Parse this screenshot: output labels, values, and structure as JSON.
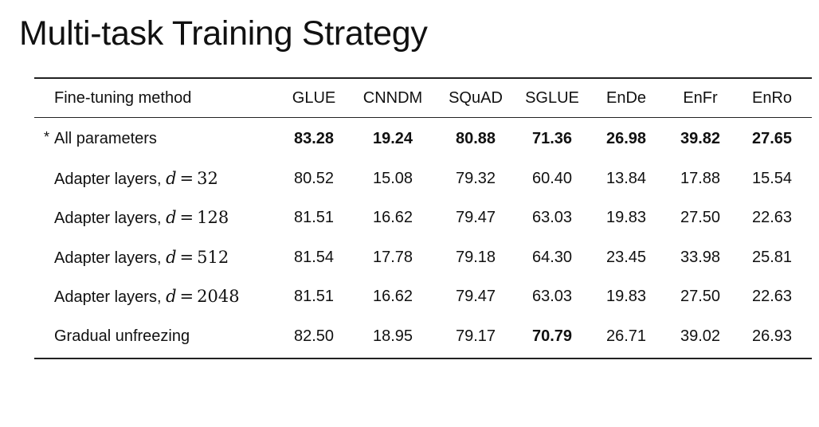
{
  "slide": {
    "title": "Multi-task Training Strategy"
  },
  "table": {
    "headers": [
      "Fine-tuning method",
      "GLUE",
      "CNNDM",
      "SQuAD",
      "SGLUE",
      "EnDe",
      "EnFr",
      "EnRo"
    ],
    "rows": [
      {
        "marker": "*",
        "label": "All parameters",
        "values": [
          "83.28",
          "19.24",
          "80.88",
          "71.36",
          "26.98",
          "39.82",
          "27.65"
        ],
        "bold": [
          true,
          true,
          true,
          true,
          true,
          true,
          true
        ]
      },
      {
        "label": "Adapter layers,",
        "math_var": "d",
        "math_op": "=",
        "math_val": "32",
        "values": [
          "80.52",
          "15.08",
          "79.32",
          "60.40",
          "13.84",
          "17.88",
          "15.54"
        ],
        "bold": [
          false,
          false,
          false,
          false,
          false,
          false,
          false
        ]
      },
      {
        "label": "Adapter layers,",
        "math_var": "d",
        "math_op": "=",
        "math_val": "128",
        "values": [
          "81.51",
          "16.62",
          "79.47",
          "63.03",
          "19.83",
          "27.50",
          "22.63"
        ],
        "bold": [
          false,
          false,
          false,
          false,
          false,
          false,
          false
        ]
      },
      {
        "label": "Adapter layers,",
        "math_var": "d",
        "math_op": "=",
        "math_val": "512",
        "values": [
          "81.54",
          "17.78",
          "79.18",
          "64.30",
          "23.45",
          "33.98",
          "25.81"
        ],
        "bold": [
          false,
          false,
          false,
          false,
          false,
          false,
          false
        ]
      },
      {
        "label": "Adapter layers,",
        "math_var": "d",
        "math_op": "=",
        "math_val": "2048",
        "values": [
          "81.51",
          "16.62",
          "79.47",
          "63.03",
          "19.83",
          "27.50",
          "22.63"
        ],
        "bold": [
          false,
          false,
          false,
          false,
          false,
          false,
          false
        ]
      },
      {
        "label": "Gradual unfreezing",
        "values": [
          "82.50",
          "18.95",
          "79.17",
          "70.79",
          "26.71",
          "39.02",
          "26.93"
        ],
        "bold": [
          false,
          false,
          false,
          true,
          false,
          false,
          false
        ]
      }
    ]
  },
  "colors": {
    "text": "#111111",
    "rule": "#222222",
    "background": "#ffffff"
  }
}
